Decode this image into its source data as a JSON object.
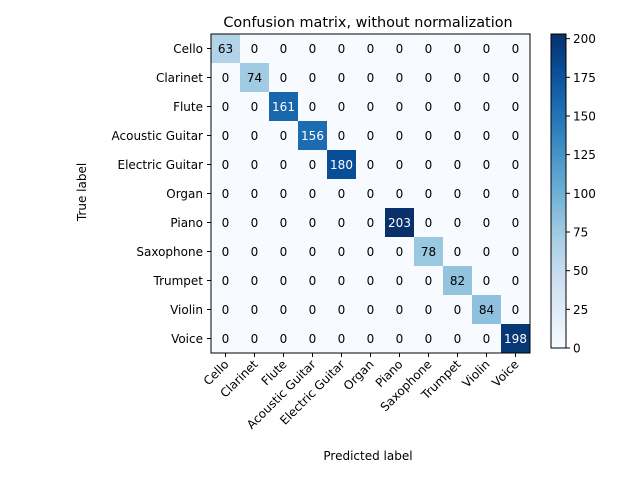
{
  "chart_data": {
    "type": "heatmap",
    "title": "Confusion matrix, without normalization",
    "xlabel": "Predicted label",
    "ylabel": "True label",
    "classes": [
      "Cello",
      "Clarinet",
      "Flute",
      "Acoustic Guitar",
      "Electric Guitar",
      "Organ",
      "Piano",
      "Saxophone",
      "Trumpet",
      "Violin",
      "Voice"
    ],
    "matrix": [
      [
        63,
        0,
        0,
        0,
        0,
        0,
        0,
        0,
        0,
        0,
        0
      ],
      [
        0,
        74,
        0,
        0,
        0,
        0,
        0,
        0,
        0,
        0,
        0
      ],
      [
        0,
        0,
        161,
        0,
        0,
        0,
        0,
        0,
        0,
        0,
        0
      ],
      [
        0,
        0,
        0,
        156,
        0,
        0,
        0,
        0,
        0,
        0,
        0
      ],
      [
        0,
        0,
        0,
        0,
        180,
        0,
        0,
        0,
        0,
        0,
        0
      ],
      [
        0,
        0,
        0,
        0,
        0,
        0,
        0,
        0,
        0,
        0,
        0
      ],
      [
        0,
        0,
        0,
        0,
        0,
        0,
        203,
        0,
        0,
        0,
        0
      ],
      [
        0,
        0,
        0,
        0,
        0,
        0,
        0,
        78,
        0,
        0,
        0
      ],
      [
        0,
        0,
        0,
        0,
        0,
        0,
        0,
        0,
        82,
        0,
        0
      ],
      [
        0,
        0,
        0,
        0,
        0,
        0,
        0,
        0,
        0,
        84,
        0
      ],
      [
        0,
        0,
        0,
        0,
        0,
        0,
        0,
        0,
        0,
        0,
        198
      ]
    ],
    "colormap": "Blues",
    "colorbar": {
      "range": [
        0,
        203
      ],
      "ticks": [
        0,
        25,
        50,
        75,
        100,
        125,
        150,
        175,
        200
      ]
    }
  }
}
